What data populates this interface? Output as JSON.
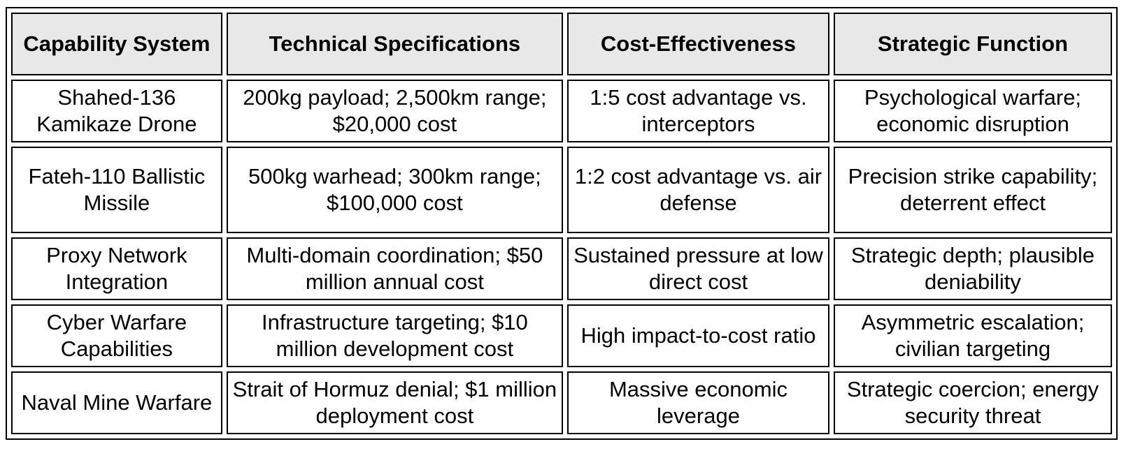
{
  "table": {
    "headers": [
      "Capability System",
      "Technical Specifications",
      "Cost-Effectiveness",
      "Strategic Function"
    ],
    "rows": [
      [
        "Shahed-136 Kamikaze Drone",
        "200kg payload; 2,500km range; $20,000 cost",
        "1:5 cost advantage vs. interceptors",
        "Psychological warfare; economic disruption"
      ],
      [
        "Fateh-110 Ballistic Missile",
        "500kg warhead; 300km range; $100,000 cost",
        "1:2 cost advantage vs. air defense",
        "Precision strike capability; deterrent effect"
      ],
      [
        "Proxy Network Integration",
        "Multi-domain coordination; $50 million annual cost",
        "Sustained pressure at low direct cost",
        "Strategic depth; plausible deniability"
      ],
      [
        "Cyber Warfare Capabilities",
        "Infrastructure targeting; $10 million development cost",
        "High impact-to-cost ratio",
        "Asymmetric escalation; civilian targeting"
      ],
      [
        "Naval Mine Warfare",
        "Strait of Hormuz denial; $1 million deployment cost",
        "Massive economic leverage",
        "Strategic coercion; energy security threat"
      ]
    ]
  }
}
